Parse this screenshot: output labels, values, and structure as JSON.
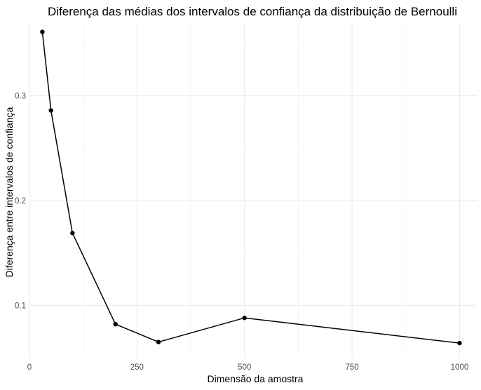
{
  "chart_data": {
    "type": "line",
    "title": "Diferença das médias dos intervalos de confiança da distribuição de Bernoulli",
    "xlabel": "Dimensão da amostra",
    "ylabel": "Diferença entre intervalos de confiança",
    "xlim": [
      0,
      1040
    ],
    "ylim": [
      0.05,
      0.37
    ],
    "x_ticks": [
      0,
      250,
      500,
      750,
      1000
    ],
    "x_tick_labels": [
      "0",
      "250",
      "500",
      "750",
      "1000"
    ],
    "y_ticks": [
      0.1,
      0.2,
      0.3
    ],
    "y_tick_labels": [
      "0.1",
      "0.2",
      "0.3"
    ],
    "x_minor_ticks": [
      125,
      375,
      625,
      875
    ],
    "y_minor_ticks": [
      0.15,
      0.25,
      0.35
    ],
    "grid": true,
    "legend": "none",
    "series": [
      {
        "x": [
          30,
          50,
          100,
          200,
          300,
          500,
          1000
        ],
        "values": [
          0.361,
          0.286,
          0.169,
          0.082,
          0.065,
          0.088,
          0.064
        ],
        "color": "#000000"
      }
    ]
  }
}
